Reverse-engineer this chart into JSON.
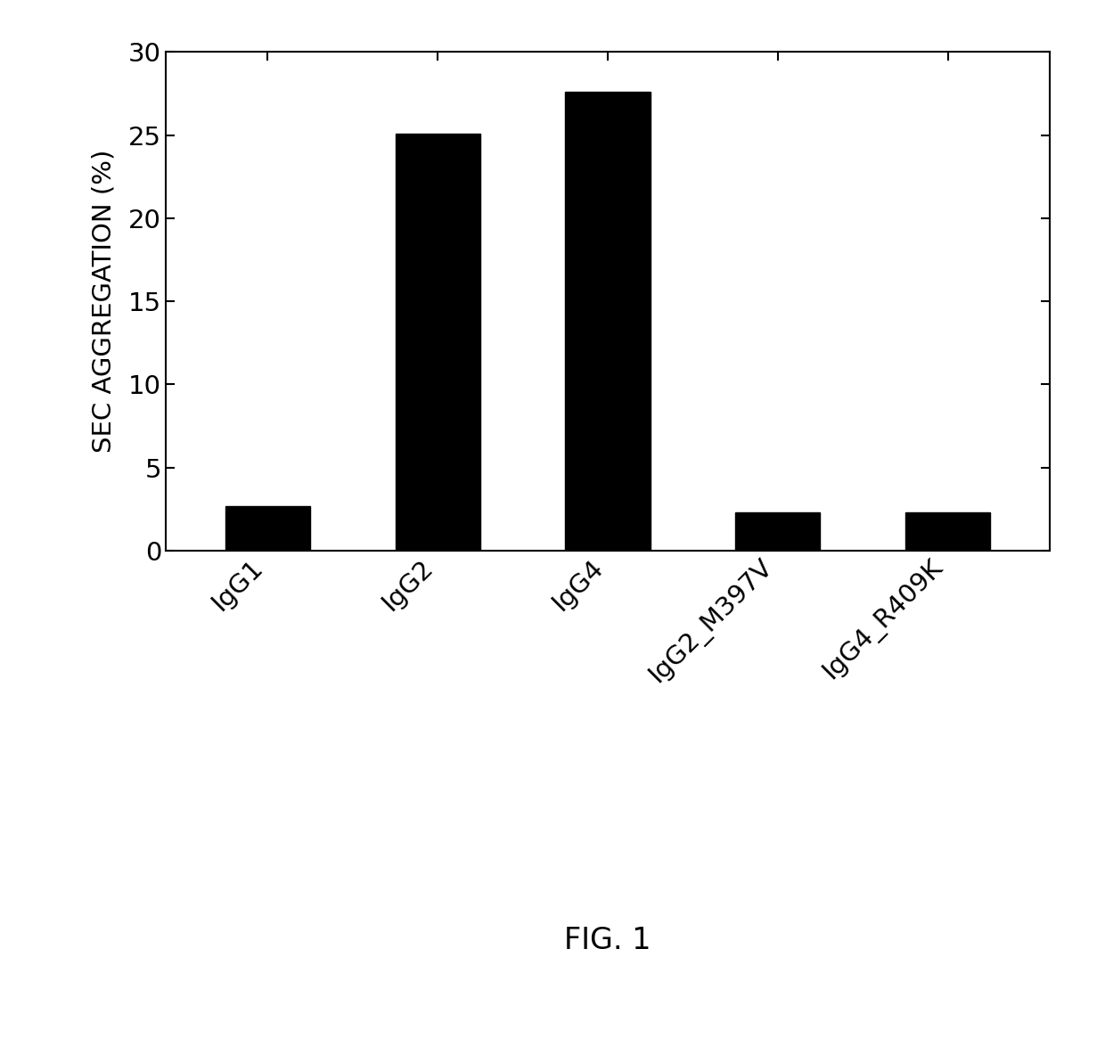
{
  "categories": [
    "IgG1",
    "IgG2",
    "IgG4",
    "IgG2_M397V",
    "IgG4_R409K"
  ],
  "values": [
    2.7,
    25.1,
    27.6,
    2.3,
    2.3
  ],
  "bar_color": "#000000",
  "ylabel": "SEC AGGREGATION (%)",
  "ylim": [
    0,
    30
  ],
  "yticks": [
    0,
    5,
    10,
    15,
    20,
    25,
    30
  ],
  "figure_caption": "FIG. 1",
  "bar_width": 0.5,
  "background_color": "#ffffff",
  "ylabel_fontsize": 21,
  "xtick_fontsize": 21,
  "ytick_fontsize": 21,
  "caption_fontsize": 24
}
